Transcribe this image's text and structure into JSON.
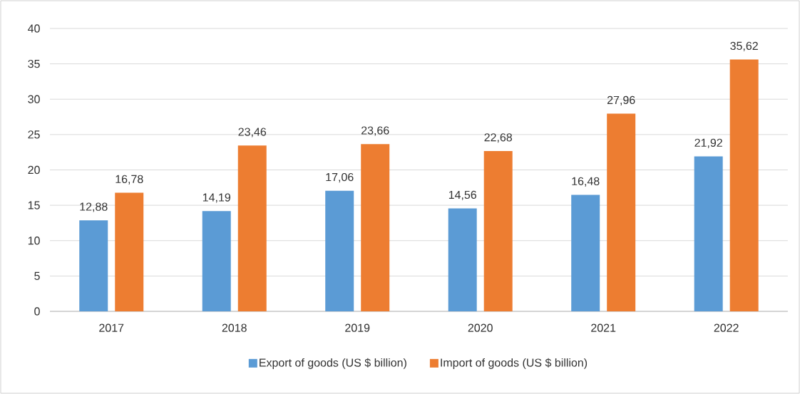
{
  "chart_data": {
    "type": "bar",
    "categories": [
      "2017",
      "2018",
      "2019",
      "2020",
      "2021",
      "2022"
    ],
    "series": [
      {
        "name": "Export of goods (US $ billion)",
        "color": "#5b9bd5",
        "values": [
          12.88,
          14.19,
          17.06,
          14.56,
          16.48,
          21.92
        ],
        "value_labels": [
          "12,88",
          "14,19",
          "17,06",
          "14,56",
          "16,48",
          "21,92"
        ]
      },
      {
        "name": "Import of goods (US $ billion)",
        "color": "#ed7d31",
        "values": [
          16.78,
          23.46,
          23.66,
          22.68,
          27.96,
          35.62
        ],
        "value_labels": [
          "16,78",
          "23,46",
          "23,66",
          "22,68",
          "27,96",
          "35,62"
        ]
      }
    ],
    "ylim": [
      0,
      40
    ],
    "yticks": [
      0,
      5,
      10,
      15,
      20,
      25,
      30,
      35,
      40
    ],
    "grid": "y",
    "legend": "bottom"
  }
}
